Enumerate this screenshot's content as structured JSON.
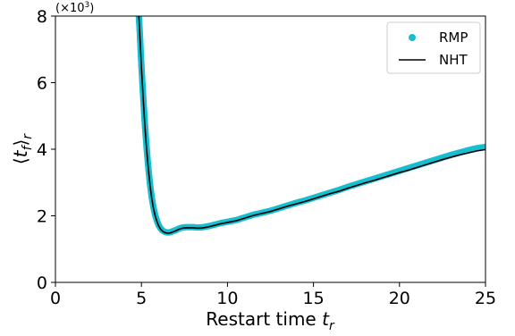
{
  "chart_data": {
    "type": "line",
    "xlabel": "Restart time",
    "xlabel_var": "t",
    "xlabel_sub": "r",
    "ylabel_var": "t",
    "ylabel_inner_sub": "f",
    "ylabel_outer_sub": "r",
    "y_multiplier_prefix": "(×10",
    "y_multiplier_exp": "3",
    "y_multiplier_suffix": ")",
    "xlim": [
      0,
      25
    ],
    "ylim": [
      0,
      8
    ],
    "xticks": [
      0,
      5,
      10,
      15,
      20,
      25
    ],
    "yticks": [
      0,
      2,
      4,
      6,
      8
    ],
    "grid": false,
    "legend_position": "top-right",
    "series": [
      {
        "name": "RMP",
        "style": "markers",
        "color": "#17becf",
        "x": [
          4.85,
          4.9,
          5.0,
          5.1,
          5.2,
          5.3,
          5.4,
          5.5,
          5.6,
          5.7,
          5.8,
          5.9,
          6.0,
          6.1,
          6.2,
          6.3,
          6.4,
          6.5,
          6.6,
          6.7,
          6.8,
          6.9,
          7.0,
          7.2,
          7.4,
          7.6,
          7.8,
          8.0,
          8.2,
          8.4,
          8.6,
          8.8,
          9.0,
          9.3,
          9.6,
          10.0,
          10.5,
          11.0,
          11.5,
          12.0,
          12.5,
          13.0,
          13.5,
          14.0,
          14.5,
          15.0,
          15.5,
          16.0,
          16.5,
          17.0,
          17.5,
          18.0,
          18.5,
          19.0,
          19.5,
          20.0,
          20.5,
          21.0,
          21.5,
          22.0,
          22.5,
          23.0,
          23.5,
          24.0,
          24.5,
          25.0
        ],
        "y": [
          8.0,
          7.55,
          6.5,
          5.6,
          4.75,
          4.05,
          3.45,
          2.95,
          2.55,
          2.25,
          2.02,
          1.85,
          1.72,
          1.63,
          1.57,
          1.53,
          1.51,
          1.5,
          1.5,
          1.51,
          1.53,
          1.55,
          1.57,
          1.62,
          1.65,
          1.66,
          1.66,
          1.66,
          1.65,
          1.65,
          1.66,
          1.68,
          1.7,
          1.74,
          1.78,
          1.82,
          1.87,
          1.95,
          2.03,
          2.09,
          2.15,
          2.23,
          2.31,
          2.39,
          2.46,
          2.54,
          2.62,
          2.7,
          2.78,
          2.87,
          2.95,
          3.03,
          3.11,
          3.19,
          3.27,
          3.35,
          3.43,
          3.51,
          3.59,
          3.67,
          3.75,
          3.83,
          3.9,
          3.97,
          4.03,
          4.07
        ]
      },
      {
        "name": "NHT",
        "style": "line",
        "color": "#000000",
        "x": [
          4.85,
          4.9,
          5.0,
          5.1,
          5.2,
          5.3,
          5.4,
          5.5,
          5.6,
          5.7,
          5.8,
          5.9,
          6.0,
          6.1,
          6.2,
          6.3,
          6.4,
          6.5,
          6.6,
          6.7,
          6.8,
          6.9,
          7.0,
          7.2,
          7.4,
          7.6,
          7.8,
          8.0,
          8.2,
          8.4,
          8.6,
          8.8,
          9.0,
          9.3,
          9.6,
          10.0,
          10.5,
          11.0,
          11.5,
          12.0,
          12.5,
          13.0,
          13.5,
          14.0,
          14.5,
          15.0,
          15.5,
          16.0,
          16.5,
          17.0,
          17.5,
          18.0,
          18.5,
          19.0,
          19.5,
          20.0,
          20.5,
          21.0,
          21.5,
          22.0,
          22.5,
          23.0,
          23.5,
          24.0,
          24.5,
          25.0
        ],
        "y": [
          8.0,
          7.5,
          6.45,
          5.55,
          4.7,
          4.0,
          3.42,
          2.92,
          2.52,
          2.22,
          2.0,
          1.83,
          1.7,
          1.61,
          1.55,
          1.51,
          1.49,
          1.48,
          1.48,
          1.49,
          1.51,
          1.53,
          1.55,
          1.6,
          1.63,
          1.64,
          1.64,
          1.64,
          1.63,
          1.63,
          1.64,
          1.66,
          1.68,
          1.72,
          1.76,
          1.8,
          1.85,
          1.93,
          2.01,
          2.07,
          2.13,
          2.21,
          2.29,
          2.36,
          2.43,
          2.51,
          2.59,
          2.67,
          2.74,
          2.83,
          2.91,
          2.99,
          3.06,
          3.14,
          3.22,
          3.3,
          3.37,
          3.45,
          3.53,
          3.61,
          3.69,
          3.76,
          3.83,
          3.89,
          3.95,
          3.99
        ]
      }
    ]
  }
}
